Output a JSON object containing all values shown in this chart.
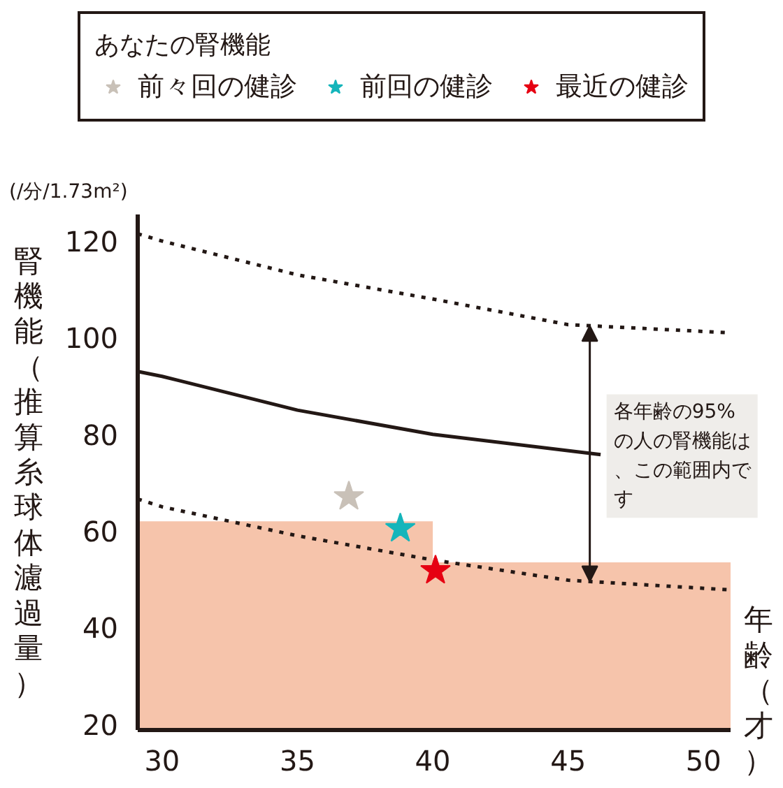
{
  "chart_data": {
    "type": "line",
    "title": null,
    "legend_title": "あなたの腎機能",
    "ylabel": "腎機能（推算糸球体濾過量）",
    "xlabel": "年齢（才）",
    "xlim": [
      29.1,
      51
    ],
    "ylim": [
      18.8,
      125.5
    ],
    "xticks": [
      30,
      35,
      40,
      45,
      50
    ],
    "yticks": [
      20,
      40,
      60,
      80,
      100,
      120
    ],
    "grid": false,
    "legend": "top",
    "series": [
      {
        "type": "area",
        "color": "#f6c4ab",
        "x": [
          29.1,
          40,
          40,
          51
        ],
        "values": [
          62,
          62,
          53.5,
          53.5
        ]
      },
      {
        "color": "#231815",
        "line_style": "dotted",
        "x": [
          29.1,
          30,
          35,
          37,
          40,
          45,
          51
        ],
        "values": [
          121.5,
          120,
          113,
          111,
          108,
          102.7,
          101
        ]
      },
      {
        "color": "#231815",
        "line_style": "solid",
        "x": [
          29.1,
          30,
          35,
          40,
          46.2
        ],
        "values": [
          93,
          92,
          85,
          80,
          75.8
        ]
      },
      {
        "color": "#231815",
        "line_style": "dotted",
        "x": [
          29.1,
          30,
          35,
          40,
          45,
          51
        ],
        "values": [
          66.6,
          65,
          59,
          54,
          49.8,
          47.8
        ]
      },
      {
        "type": "scatter",
        "marker": "star",
        "name": "前々回の健診",
        "color": "#c9c1b8",
        "x": [
          36.9
        ],
        "values": [
          67.1
        ]
      },
      {
        "type": "scatter",
        "marker": "star",
        "name": "前回の健診",
        "color": "#15b5bb",
        "x": [
          38.8
        ],
        "values": [
          60.5
        ]
      },
      {
        "type": "scatter",
        "marker": "star",
        "name": "最近の健診",
        "color": "#e60012",
        "x": [
          40.1
        ],
        "values": [
          51.8
        ]
      }
    ],
    "annotations": [
      "(/分/1.73m²)",
      {
        "text": "各年齢の95%の人の腎機能は、この範囲内です",
        "x": 45.8,
        "y": 75.5
      }
    ]
  }
}
